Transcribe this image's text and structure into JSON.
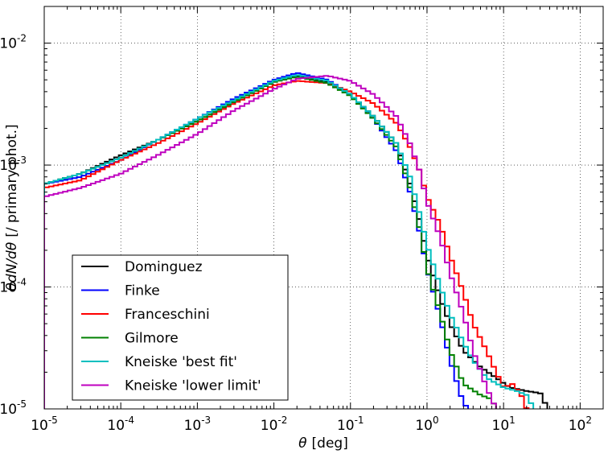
{
  "chart_data": {
    "type": "line",
    "style": "step-histogram",
    "xscale": "log",
    "yscale": "log",
    "xlim": [
      1e-05,
      200
    ],
    "ylim": [
      1e-05,
      0.02
    ],
    "grid": true,
    "legend_position": "bottom-left",
    "xlabel_symbol": "θ",
    "xlabel_unit": "[deg]",
    "ylabel_math": "θdN/dθ",
    "ylabel_unit": "[/ primary phot.]",
    "x_ticks": [
      {
        "value": 1e-05,
        "base": "10",
        "exp": "-5"
      },
      {
        "value": 0.0001,
        "base": "10",
        "exp": "-4"
      },
      {
        "value": 0.001,
        "base": "10",
        "exp": "-3"
      },
      {
        "value": 0.01,
        "base": "10",
        "exp": "-2"
      },
      {
        "value": 0.1,
        "base": "10",
        "exp": "-1"
      },
      {
        "value": 1,
        "base": "10",
        "exp": "0"
      },
      {
        "value": 10,
        "base": "10",
        "exp": "1"
      },
      {
        "value": 100,
        "base": "10",
        "exp": "2"
      }
    ],
    "y_ticks": [
      {
        "value": 1e-05,
        "base": "10",
        "exp": "-5"
      },
      {
        "value": 0.0001,
        "base": "10",
        "exp": "-4"
      },
      {
        "value": 0.001,
        "base": "10",
        "exp": "-3"
      },
      {
        "value": 0.01,
        "base": "10",
        "exp": "-2"
      }
    ],
    "series": [
      {
        "name": "Dominguez",
        "color": "#000000",
        "x": [
          1e-05,
          3e-05,
          0.0001,
          0.0003,
          0.001,
          0.003,
          0.01,
          0.02,
          0.05,
          0.1,
          0.2,
          0.4,
          0.6,
          0.8,
          1.0,
          1.5,
          2,
          3,
          5,
          8,
          12,
          20,
          30,
          38
        ],
        "y": [
          0.0007,
          0.00085,
          0.0012,
          0.0016,
          0.0023,
          0.0033,
          0.0048,
          0.0054,
          0.0048,
          0.0038,
          0.0025,
          0.0015,
          0.0007,
          0.00035,
          0.00018,
          8e-05,
          5e-05,
          3e-05,
          2.2e-05,
          1.8e-05,
          1.5e-05,
          1.4e-05,
          1.35e-05,
          1e-05
        ]
      },
      {
        "name": "Finke",
        "color": "#0000ff",
        "x": [
          1e-05,
          3e-05,
          0.0001,
          0.0003,
          0.001,
          0.003,
          0.01,
          0.02,
          0.05,
          0.1,
          0.2,
          0.4,
          0.6,
          0.8,
          1.0,
          1.5,
          2,
          3,
          3.6
        ],
        "y": [
          0.0007,
          0.0008,
          0.0011,
          0.0016,
          0.0024,
          0.0035,
          0.005,
          0.0057,
          0.005,
          0.0038,
          0.0024,
          0.0013,
          0.0006,
          0.00028,
          0.00014,
          5.5e-05,
          2.5e-05,
          1.1e-05,
          1e-05
        ]
      },
      {
        "name": "Franceschini",
        "color": "#ff0000",
        "x": [
          1e-05,
          3e-05,
          0.0001,
          0.0003,
          0.001,
          0.003,
          0.01,
          0.02,
          0.05,
          0.1,
          0.2,
          0.4,
          0.6,
          0.8,
          1.0,
          1.5,
          2,
          3,
          4,
          6,
          8,
          10,
          13,
          17,
          20
        ],
        "y": [
          0.00065,
          0.00075,
          0.0011,
          0.0015,
          0.0022,
          0.0032,
          0.0045,
          0.0049,
          0.0047,
          0.004,
          0.0032,
          0.0022,
          0.0014,
          0.0009,
          0.00055,
          0.00032,
          0.00018,
          9e-05,
          5e-05,
          3e-05,
          2e-05,
          1.5e-05,
          1.6e-05,
          1.3e-05,
          1e-05
        ]
      },
      {
        "name": "Gilmore",
        "color": "#008000",
        "x": [
          1e-05,
          3e-05,
          0.0001,
          0.0003,
          0.001,
          0.003,
          0.01,
          0.02,
          0.05,
          0.1,
          0.2,
          0.4,
          0.6,
          0.8,
          1.0,
          1.5,
          2,
          3,
          5,
          7,
          8
        ],
        "y": [
          0.0007,
          0.00085,
          0.00115,
          0.0016,
          0.0023,
          0.0033,
          0.0048,
          0.0053,
          0.0047,
          0.0037,
          0.0024,
          0.0014,
          0.00065,
          0.0003,
          0.00014,
          6e-05,
          3e-05,
          1.6e-05,
          1.3e-05,
          1.2e-05,
          1e-05
        ]
      },
      {
        "name": "Kneiske 'best fit'",
        "color": "#00bfbf",
        "x": [
          1e-05,
          3e-05,
          0.0001,
          0.0003,
          0.001,
          0.003,
          0.01,
          0.02,
          0.05,
          0.1,
          0.2,
          0.4,
          0.6,
          0.8,
          1.0,
          1.5,
          2,
          3,
          4,
          6,
          10,
          15,
          20,
          25
        ],
        "y": [
          0.0007,
          0.00085,
          0.00115,
          0.0016,
          0.0024,
          0.0034,
          0.0049,
          0.0055,
          0.0049,
          0.0038,
          0.0025,
          0.0015,
          0.0008,
          0.0004,
          0.00022,
          0.0001,
          6e-05,
          3.5e-05,
          2.5e-05,
          1.8e-05,
          1.5e-05,
          1.4e-05,
          1.3e-05,
          1e-05
        ]
      },
      {
        "name": "Kneiske 'lower limit'",
        "color": "#bf00bf",
        "x": [
          1e-05,
          3e-05,
          0.0001,
          0.0003,
          0.001,
          0.003,
          0.01,
          0.02,
          0.05,
          0.1,
          0.2,
          0.4,
          0.6,
          0.8,
          1.0,
          1.5,
          2,
          3,
          4,
          6,
          8
        ],
        "y": [
          0.00055,
          0.00065,
          0.00085,
          0.0012,
          0.0018,
          0.0028,
          0.0042,
          0.0051,
          0.0054,
          0.0049,
          0.0038,
          0.0025,
          0.0015,
          0.0009,
          0.0005,
          0.00025,
          0.00013,
          6e-05,
          3e-05,
          1.5e-05,
          1e-05
        ]
      }
    ]
  }
}
